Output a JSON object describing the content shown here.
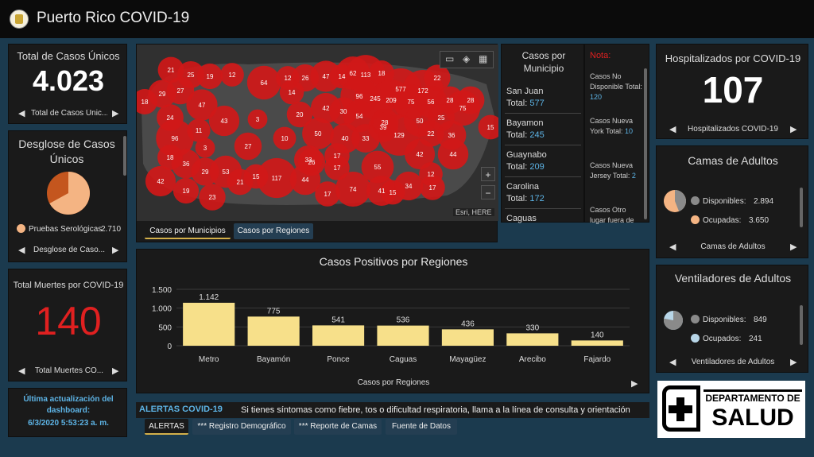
{
  "header": {
    "title": "Puerto Rico COVID-19"
  },
  "total_cases": {
    "title": "Total de Casos Únicos",
    "value": "4.023",
    "nav_label": "Total de Casos Únic..."
  },
  "breakdown": {
    "title": "Desglose de Casos Únicos",
    "legend_label": "Pruebas Serológicas",
    "legend_value": "2.710",
    "nav_label": "Desglose de Caso...",
    "fraction": 0.67
  },
  "deaths": {
    "title": "Total Muertes por COVID-19",
    "value": "140",
    "nav_label": "Total Muertes CO..."
  },
  "update": {
    "line1": "Última actualización del",
    "line2": "dashboard:",
    "line3": "6/3/2020 5:53:23 a. m."
  },
  "map": {
    "bubbles": [
      {
        "label": "21"
      },
      {
        "label": "25"
      },
      {
        "label": "19"
      },
      {
        "label": "12"
      },
      {
        "label": "64"
      },
      {
        "label": "12"
      },
      {
        "label": "26"
      },
      {
        "label": "47"
      },
      {
        "label": "14"
      },
      {
        "label": "62"
      },
      {
        "label": "113"
      },
      {
        "label": "18"
      },
      {
        "label": "22"
      },
      {
        "label": "29"
      },
      {
        "label": "27"
      },
      {
        "label": "18"
      },
      {
        "label": "47"
      },
      {
        "label": "14"
      },
      {
        "label": "577"
      },
      {
        "label": "172"
      },
      {
        "label": "245"
      },
      {
        "label": "209"
      },
      {
        "label": "75"
      },
      {
        "label": "56"
      },
      {
        "label": "28"
      },
      {
        "label": "96"
      },
      {
        "label": "75"
      },
      {
        "label": "28"
      },
      {
        "label": "42"
      },
      {
        "label": "30"
      },
      {
        "label": "20"
      },
      {
        "label": "24"
      },
      {
        "label": "43"
      },
      {
        "label": "3"
      },
      {
        "label": "54"
      },
      {
        "label": "28"
      },
      {
        "label": "50"
      },
      {
        "label": "25"
      },
      {
        "label": "39"
      },
      {
        "label": "15"
      },
      {
        "label": "11"
      },
      {
        "label": "96"
      },
      {
        "label": "10"
      },
      {
        "label": "50"
      },
      {
        "label": "40"
      },
      {
        "label": "33"
      },
      {
        "label": "129"
      },
      {
        "label": "22"
      },
      {
        "label": "36"
      },
      {
        "label": "3"
      },
      {
        "label": "27"
      },
      {
        "label": "18"
      },
      {
        "label": "33"
      },
      {
        "label": "17"
      },
      {
        "label": "42"
      },
      {
        "label": "44"
      },
      {
        "label": "26"
      },
      {
        "label": "36"
      },
      {
        "label": "29"
      },
      {
        "label": "53"
      },
      {
        "label": "17"
      },
      {
        "label": "55"
      },
      {
        "label": "21"
      },
      {
        "label": "15"
      },
      {
        "label": "117"
      },
      {
        "label": "44"
      },
      {
        "label": "12"
      },
      {
        "label": "42"
      },
      {
        "label": "19"
      },
      {
        "label": "23"
      },
      {
        "label": "17"
      },
      {
        "label": "74"
      },
      {
        "label": "41"
      },
      {
        "label": "15"
      },
      {
        "label": "34"
      },
      {
        "label": "17"
      }
    ],
    "attribution": "Esri, HERE",
    "zoom_in": "+",
    "zoom_out": "−",
    "tabs": [
      "Casos por Municipios",
      "Casos por Regiones"
    ]
  },
  "muni_list": {
    "title": "Casos por Municipio",
    "items": [
      {
        "name": "San Juan",
        "total_label": "Total:",
        "total": "577"
      },
      {
        "name": "Bayamon",
        "total_label": "Total:",
        "total": "245"
      },
      {
        "name": "Guaynabo",
        "total_label": "Total:",
        "total": "209"
      },
      {
        "name": "Carolina",
        "total_label": "Total:",
        "total": "172"
      },
      {
        "name": "Caguas",
        "total_label": "",
        "total": ""
      }
    ]
  },
  "note": {
    "title": "Nota:",
    "items": [
      {
        "text": "Casos No Disponible Total:",
        "value": "120"
      },
      {
        "text": "Casos Nueva York Total:",
        "value": "10"
      },
      {
        "text": "Casos Nueva Jersey Total:",
        "value": "2"
      },
      {
        "text": "Casos Otro lugar fuera de",
        "value": ""
      }
    ]
  },
  "chart_data": {
    "type": "bar",
    "title": "Casos Positivos por Regiones",
    "xlabel": "Casos por Regiones",
    "ylabel": "",
    "categories": [
      "Metro",
      "Bayamón",
      "Ponce",
      "Caguas",
      "Mayagüez",
      "Arecibo",
      "Fajardo"
    ],
    "values": [
      1142,
      775,
      541,
      536,
      436,
      330,
      140
    ],
    "value_labels": [
      "1.142",
      "775",
      "541",
      "536",
      "436",
      "330",
      "140"
    ],
    "yticks": [
      0,
      500,
      1000,
      1500
    ],
    "ytick_labels": [
      "0",
      "500",
      "1.000",
      "1.500"
    ],
    "ylim": [
      0,
      1500
    ],
    "bar_color": "#f7e08a",
    "grid": true
  },
  "alerts": {
    "title": "ALERTAS COVID-19",
    "message": "Si tienes síntomas como fiebre, tos o dificultad respiratoria, llama a la línea de consulta y orientación",
    "tabs": [
      "ALERTAS",
      "*** Registro Demográfico",
      "*** Reporte de Camas",
      "Fuente de Datos"
    ]
  },
  "hospitalized": {
    "title": "Hospitalizados por COVID-19",
    "value": "107",
    "nav_label": "Hospitalizados COVID-19"
  },
  "beds": {
    "title": "Camas de Adultos",
    "available_label": "Disponibles:",
    "available": "2.894",
    "occupied_label": "Ocupadas:",
    "occupied": "3.650",
    "nav_label": "Camas de Adultos",
    "fraction_available": 0.44
  },
  "ventilators": {
    "title": "Ventiladores de Adultos",
    "available_label": "Disponibles:",
    "available": "849",
    "occupied_label": "Ocupados:",
    "occupied": "241",
    "nav_label": "Ventiladores de Adultos",
    "fraction_available": 0.78
  },
  "logo": {
    "line1": "DEPARTAMENTO DE",
    "line2": "SALUD"
  },
  "colors": {
    "accent_blue": "#5db4e6",
    "death_red": "#e02020",
    "bubble_red": "#d01818",
    "tab_gold": "#d4b04a"
  }
}
